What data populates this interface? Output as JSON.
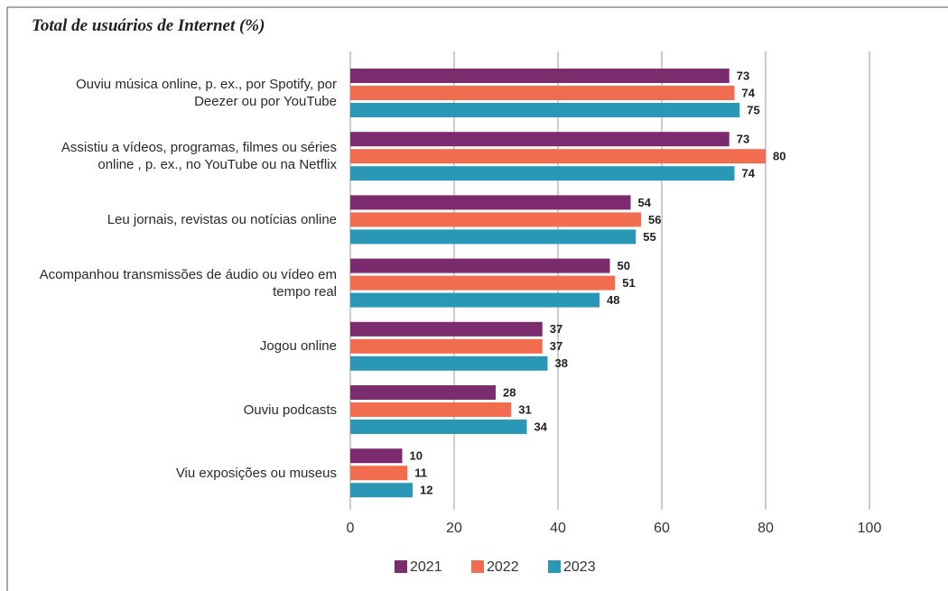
{
  "chart_data": {
    "type": "hbar",
    "title": "Total de usuários de Internet (%)",
    "categories": [
      "Ouviu música online, p. ex., por Spotify, por Deezer ou por YouTube",
      "Assistiu a vídeos, programas, filmes ou séries online , p. ex., no YouTube ou na Netflix",
      "Leu jornais, revistas ou notícias online",
      "Acompanhou transmissões de áudio ou vídeo em tempo real",
      "Jogou online",
      "Ouviu podcasts",
      "Viu exposições ou museus"
    ],
    "series": [
      {
        "name": "2021",
        "color": "#7d2b6f",
        "values": [
          73,
          73,
          54,
          50,
          37,
          28,
          10
        ]
      },
      {
        "name": "2022",
        "color": "#f26c4f",
        "values": [
          74,
          80,
          56,
          51,
          37,
          31,
          11
        ]
      },
      {
        "name": "2023",
        "color": "#2a97b7",
        "values": [
          75,
          74,
          55,
          48,
          38,
          34,
          12
        ]
      }
    ],
    "xlim": [
      0,
      100
    ],
    "xticks": [
      0,
      20,
      40,
      60,
      80,
      100
    ],
    "grid": true
  }
}
